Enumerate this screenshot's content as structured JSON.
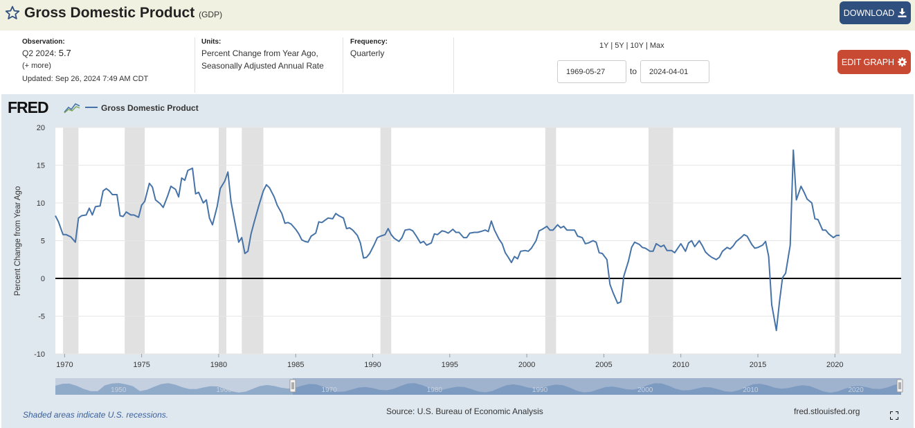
{
  "header": {
    "title": "Gross Domestic Product",
    "series_id": "(GDP)",
    "download_label": "DOWNLOAD"
  },
  "meta": {
    "observation_label": "Observation:",
    "observation_period": "Q2 2024:",
    "observation_value": "5.7",
    "more_link": "(+ more)",
    "updated_label": "Updated:",
    "updated_value": "Sep 26, 2024 7:49 AM CDT",
    "units_label": "Units:",
    "units_line1": "Percent Change from Year Ago,",
    "units_line2": "Seasonally Adjusted Annual Rate",
    "frequency_label": "Frequency:",
    "frequency_value": "Quarterly"
  },
  "controls": {
    "range_1y": "1Y",
    "range_5y": "5Y",
    "range_10y": "10Y",
    "range_max": "Max",
    "sep": "|",
    "start_date": "1969-05-27",
    "to_label": "to",
    "end_date": "2024-04-01",
    "edit_label": "EDIT GRAPH"
  },
  "footer": {
    "recession_note": "Shaded areas indicate U.S. recessions.",
    "source": "Source: U.S. Bureau of Economic Analysis",
    "url": "fred.stlouisfed.org"
  },
  "colors": {
    "series": "#4572a7",
    "recession": "#e1e1e1",
    "panel": "#e0e8ef",
    "download": "#2f4f7f",
    "edit": "#c94a33"
  },
  "chart_data": {
    "type": "line",
    "title": "Gross Domestic Product",
    "legend": [
      "Gross Domestic Product"
    ],
    "logo": "FRED",
    "xlabel": "",
    "ylabel": "Percent Change from Year Ago",
    "xlim": [
      1969.4,
      2024.3
    ],
    "ylim": [
      -10,
      20
    ],
    "y_ticks": [
      20,
      15,
      10,
      5,
      0,
      -5,
      -10
    ],
    "x_ticks": [
      1970,
      1975,
      1980,
      1985,
      1990,
      1995,
      2000,
      2005,
      2010,
      2015,
      2020
    ],
    "recessions": [
      [
        1969.9,
        1970.9
      ],
      [
        1973.9,
        1975.2
      ],
      [
        1980.0,
        1980.5
      ],
      [
        1981.5,
        1982.9
      ],
      [
        1990.5,
        1991.2
      ],
      [
        2001.2,
        2001.9
      ],
      [
        2007.9,
        2009.5
      ],
      [
        2020.0,
        2020.3
      ]
    ],
    "navigator_ticks": [
      1950,
      1960,
      1970,
      1980,
      1990,
      2000,
      2010,
      2020
    ],
    "series": [
      {
        "name": "Gross Domestic Product",
        "points": [
          [
            1969.4,
            8.3
          ],
          [
            1969.6,
            7.5
          ],
          [
            1969.9,
            5.8
          ],
          [
            1970.1,
            5.8
          ],
          [
            1970.4,
            5.5
          ],
          [
            1970.7,
            4.8
          ],
          [
            1970.9,
            8.0
          ],
          [
            1971.1,
            8.3
          ],
          [
            1971.4,
            8.4
          ],
          [
            1971.6,
            9.3
          ],
          [
            1971.8,
            8.4
          ],
          [
            1972.0,
            9.5
          ],
          [
            1972.3,
            9.6
          ],
          [
            1972.5,
            11.6
          ],
          [
            1972.7,
            11.9
          ],
          [
            1972.9,
            11.6
          ],
          [
            1973.1,
            11.1
          ],
          [
            1973.4,
            11.1
          ],
          [
            1973.6,
            8.3
          ],
          [
            1973.8,
            8.2
          ],
          [
            1974.0,
            8.8
          ],
          [
            1974.3,
            8.4
          ],
          [
            1974.5,
            8.4
          ],
          [
            1974.8,
            8.1
          ],
          [
            1975.0,
            9.7
          ],
          [
            1975.2,
            10.2
          ],
          [
            1975.5,
            12.6
          ],
          [
            1975.7,
            12.1
          ],
          [
            1975.9,
            10.4
          ],
          [
            1976.2,
            9.9
          ],
          [
            1976.4,
            9.4
          ],
          [
            1976.7,
            11.0
          ],
          [
            1976.9,
            12.2
          ],
          [
            1977.2,
            11.8
          ],
          [
            1977.4,
            10.8
          ],
          [
            1977.6,
            13.3
          ],
          [
            1977.8,
            13.0
          ],
          [
            1978.0,
            14.3
          ],
          [
            1978.3,
            14.6
          ],
          [
            1978.5,
            11.2
          ],
          [
            1978.7,
            11.4
          ],
          [
            1979.0,
            10.0
          ],
          [
            1979.2,
            10.4
          ],
          [
            1979.4,
            8.0
          ],
          [
            1979.6,
            7.1
          ],
          [
            1979.9,
            9.5
          ],
          [
            1980.1,
            11.9
          ],
          [
            1980.4,
            12.9
          ],
          [
            1980.6,
            14.1
          ],
          [
            1980.8,
            10.2
          ],
          [
            1981.0,
            8.0
          ],
          [
            1981.3,
            4.8
          ],
          [
            1981.5,
            5.4
          ],
          [
            1981.7,
            3.3
          ],
          [
            1981.9,
            3.6
          ],
          [
            1982.1,
            5.9
          ],
          [
            1982.3,
            7.4
          ],
          [
            1982.6,
            9.6
          ],
          [
            1982.9,
            11.6
          ],
          [
            1983.1,
            12.4
          ],
          [
            1983.3,
            12.0
          ],
          [
            1983.6,
            10.8
          ],
          [
            1983.8,
            9.7
          ],
          [
            1984.1,
            8.6
          ],
          [
            1984.3,
            7.3
          ],
          [
            1984.5,
            7.4
          ],
          [
            1984.7,
            7.2
          ],
          [
            1985.0,
            6.5
          ],
          [
            1985.2,
            5.9
          ],
          [
            1985.4,
            5.1
          ],
          [
            1985.6,
            4.9
          ],
          [
            1985.8,
            4.8
          ],
          [
            1986.0,
            5.6
          ],
          [
            1986.3,
            6.0
          ],
          [
            1986.5,
            7.5
          ],
          [
            1986.7,
            7.4
          ],
          [
            1986.9,
            7.7
          ],
          [
            1987.1,
            8.0
          ],
          [
            1987.4,
            7.9
          ],
          [
            1987.6,
            8.6
          ],
          [
            1987.8,
            8.3
          ],
          [
            1988.1,
            8.0
          ],
          [
            1988.3,
            6.6
          ],
          [
            1988.5,
            6.7
          ],
          [
            1988.7,
            6.4
          ],
          [
            1989.0,
            5.7
          ],
          [
            1989.2,
            4.7
          ],
          [
            1989.4,
            2.7
          ],
          [
            1989.6,
            2.8
          ],
          [
            1989.8,
            3.3
          ],
          [
            1990.1,
            4.5
          ],
          [
            1990.3,
            5.4
          ],
          [
            1990.5,
            5.6
          ],
          [
            1990.8,
            5.8
          ],
          [
            1991.0,
            6.6
          ],
          [
            1991.2,
            5.8
          ],
          [
            1991.4,
            5.3
          ],
          [
            1991.7,
            4.9
          ],
          [
            1991.9,
            5.4
          ],
          [
            1992.1,
            6.4
          ],
          [
            1992.4,
            6.5
          ],
          [
            1992.6,
            6.3
          ],
          [
            1992.8,
            5.7
          ],
          [
            1993.1,
            4.7
          ],
          [
            1993.3,
            4.9
          ],
          [
            1993.5,
            4.4
          ],
          [
            1993.8,
            4.7
          ],
          [
            1994.0,
            5.9
          ],
          [
            1994.2,
            5.8
          ],
          [
            1994.5,
            6.3
          ],
          [
            1994.7,
            6.2
          ],
          [
            1994.9,
            6.0
          ],
          [
            1995.2,
            6.5
          ],
          [
            1995.4,
            6.1
          ],
          [
            1995.6,
            6.1
          ],
          [
            1995.9,
            5.4
          ],
          [
            1996.1,
            5.4
          ],
          [
            1996.3,
            6.0
          ],
          [
            1996.6,
            6.1
          ],
          [
            1996.8,
            6.1
          ],
          [
            1997.0,
            6.2
          ],
          [
            1997.3,
            6.4
          ],
          [
            1997.5,
            6.2
          ],
          [
            1997.7,
            7.6
          ],
          [
            1997.9,
            6.4
          ],
          [
            1998.2,
            5.2
          ],
          [
            1998.4,
            4.6
          ],
          [
            1998.6,
            3.4
          ],
          [
            1998.8,
            2.8
          ],
          [
            1999.0,
            2.1
          ],
          [
            1999.2,
            2.9
          ],
          [
            1999.4,
            2.6
          ],
          [
            1999.6,
            3.6
          ],
          [
            1999.9,
            3.7
          ],
          [
            2000.1,
            3.6
          ],
          [
            2000.3,
            4.0
          ],
          [
            2000.6,
            5.0
          ],
          [
            2000.8,
            6.3
          ],
          [
            2001.0,
            6.5
          ],
          [
            2001.3,
            6.9
          ],
          [
            2001.5,
            6.4
          ],
          [
            2001.7,
            6.4
          ],
          [
            2002.0,
            7.1
          ],
          [
            2002.2,
            6.7
          ],
          [
            2002.4,
            6.9
          ],
          [
            2002.6,
            6.4
          ],
          [
            2002.9,
            6.4
          ],
          [
            2003.1,
            6.4
          ],
          [
            2003.3,
            5.6
          ],
          [
            2003.6,
            5.4
          ],
          [
            2003.8,
            4.6
          ],
          [
            2004.0,
            4.7
          ],
          [
            2004.3,
            5.0
          ],
          [
            2004.5,
            4.8
          ],
          [
            2004.7,
            3.4
          ],
          [
            2004.9,
            3.3
          ],
          [
            2005.2,
            2.5
          ],
          [
            2005.4,
            -0.8
          ],
          [
            2005.6,
            -1.9
          ],
          [
            2005.9,
            -3.3
          ],
          [
            2006.1,
            -3.1
          ],
          [
            2006.3,
            0.3
          ],
          [
            2006.6,
            2.3
          ],
          [
            2006.8,
            4.1
          ],
          [
            2007.0,
            4.8
          ],
          [
            2007.3,
            4.5
          ],
          [
            2007.5,
            4.1
          ],
          [
            2007.7,
            4.0
          ],
          [
            2008.0,
            3.6
          ],
          [
            2008.2,
            3.6
          ],
          [
            2008.4,
            4.6
          ],
          [
            2008.7,
            4.2
          ],
          [
            2008.9,
            4.4
          ],
          [
            2009.1,
            3.7
          ],
          [
            2009.4,
            3.7
          ],
          [
            2009.6,
            3.4
          ],
          [
            2009.8,
            4.0
          ],
          [
            2010.0,
            4.6
          ],
          [
            2010.3,
            3.6
          ],
          [
            2010.5,
            4.7
          ],
          [
            2010.7,
            5.0
          ],
          [
            2010.9,
            4.2
          ],
          [
            2011.2,
            5.0
          ],
          [
            2011.4,
            4.3
          ],
          [
            2011.6,
            3.5
          ],
          [
            2011.8,
            3.1
          ],
          [
            2012.0,
            2.8
          ],
          [
            2012.3,
            2.5
          ],
          [
            2012.5,
            2.8
          ],
          [
            2012.7,
            3.6
          ],
          [
            2013.0,
            4.1
          ],
          [
            2013.2,
            3.9
          ],
          [
            2013.4,
            4.3
          ],
          [
            2013.6,
            4.9
          ],
          [
            2013.9,
            5.4
          ],
          [
            2014.1,
            5.8
          ],
          [
            2014.3,
            5.6
          ],
          [
            2014.6,
            4.5
          ],
          [
            2014.8,
            4.0
          ],
          [
            2015.0,
            4.1
          ],
          [
            2015.3,
            4.4
          ],
          [
            2015.5,
            4.9
          ],
          [
            2015.7,
            2.9
          ],
          [
            2015.9,
            -3.5
          ],
          [
            2016.2,
            -6.9
          ],
          [
            2016.4,
            -3.1
          ],
          [
            2016.6,
            0.1
          ],
          [
            2016.8,
            0.7
          ],
          [
            2017.1,
            4.4
          ],
          [
            2017.3,
            17.0
          ],
          [
            2017.5,
            10.4
          ],
          [
            2017.8,
            12.2
          ],
          [
            2018.0,
            11.4
          ],
          [
            2018.2,
            10.5
          ],
          [
            2018.5,
            10.0
          ],
          [
            2018.7,
            7.9
          ],
          [
            2018.9,
            7.8
          ],
          [
            2019.2,
            6.4
          ],
          [
            2019.4,
            6.4
          ],
          [
            2019.6,
            5.9
          ],
          [
            2019.9,
            5.4
          ],
          [
            2020.1,
            5.7
          ],
          [
            2020.3,
            5.7
          ]
        ]
      }
    ]
  }
}
